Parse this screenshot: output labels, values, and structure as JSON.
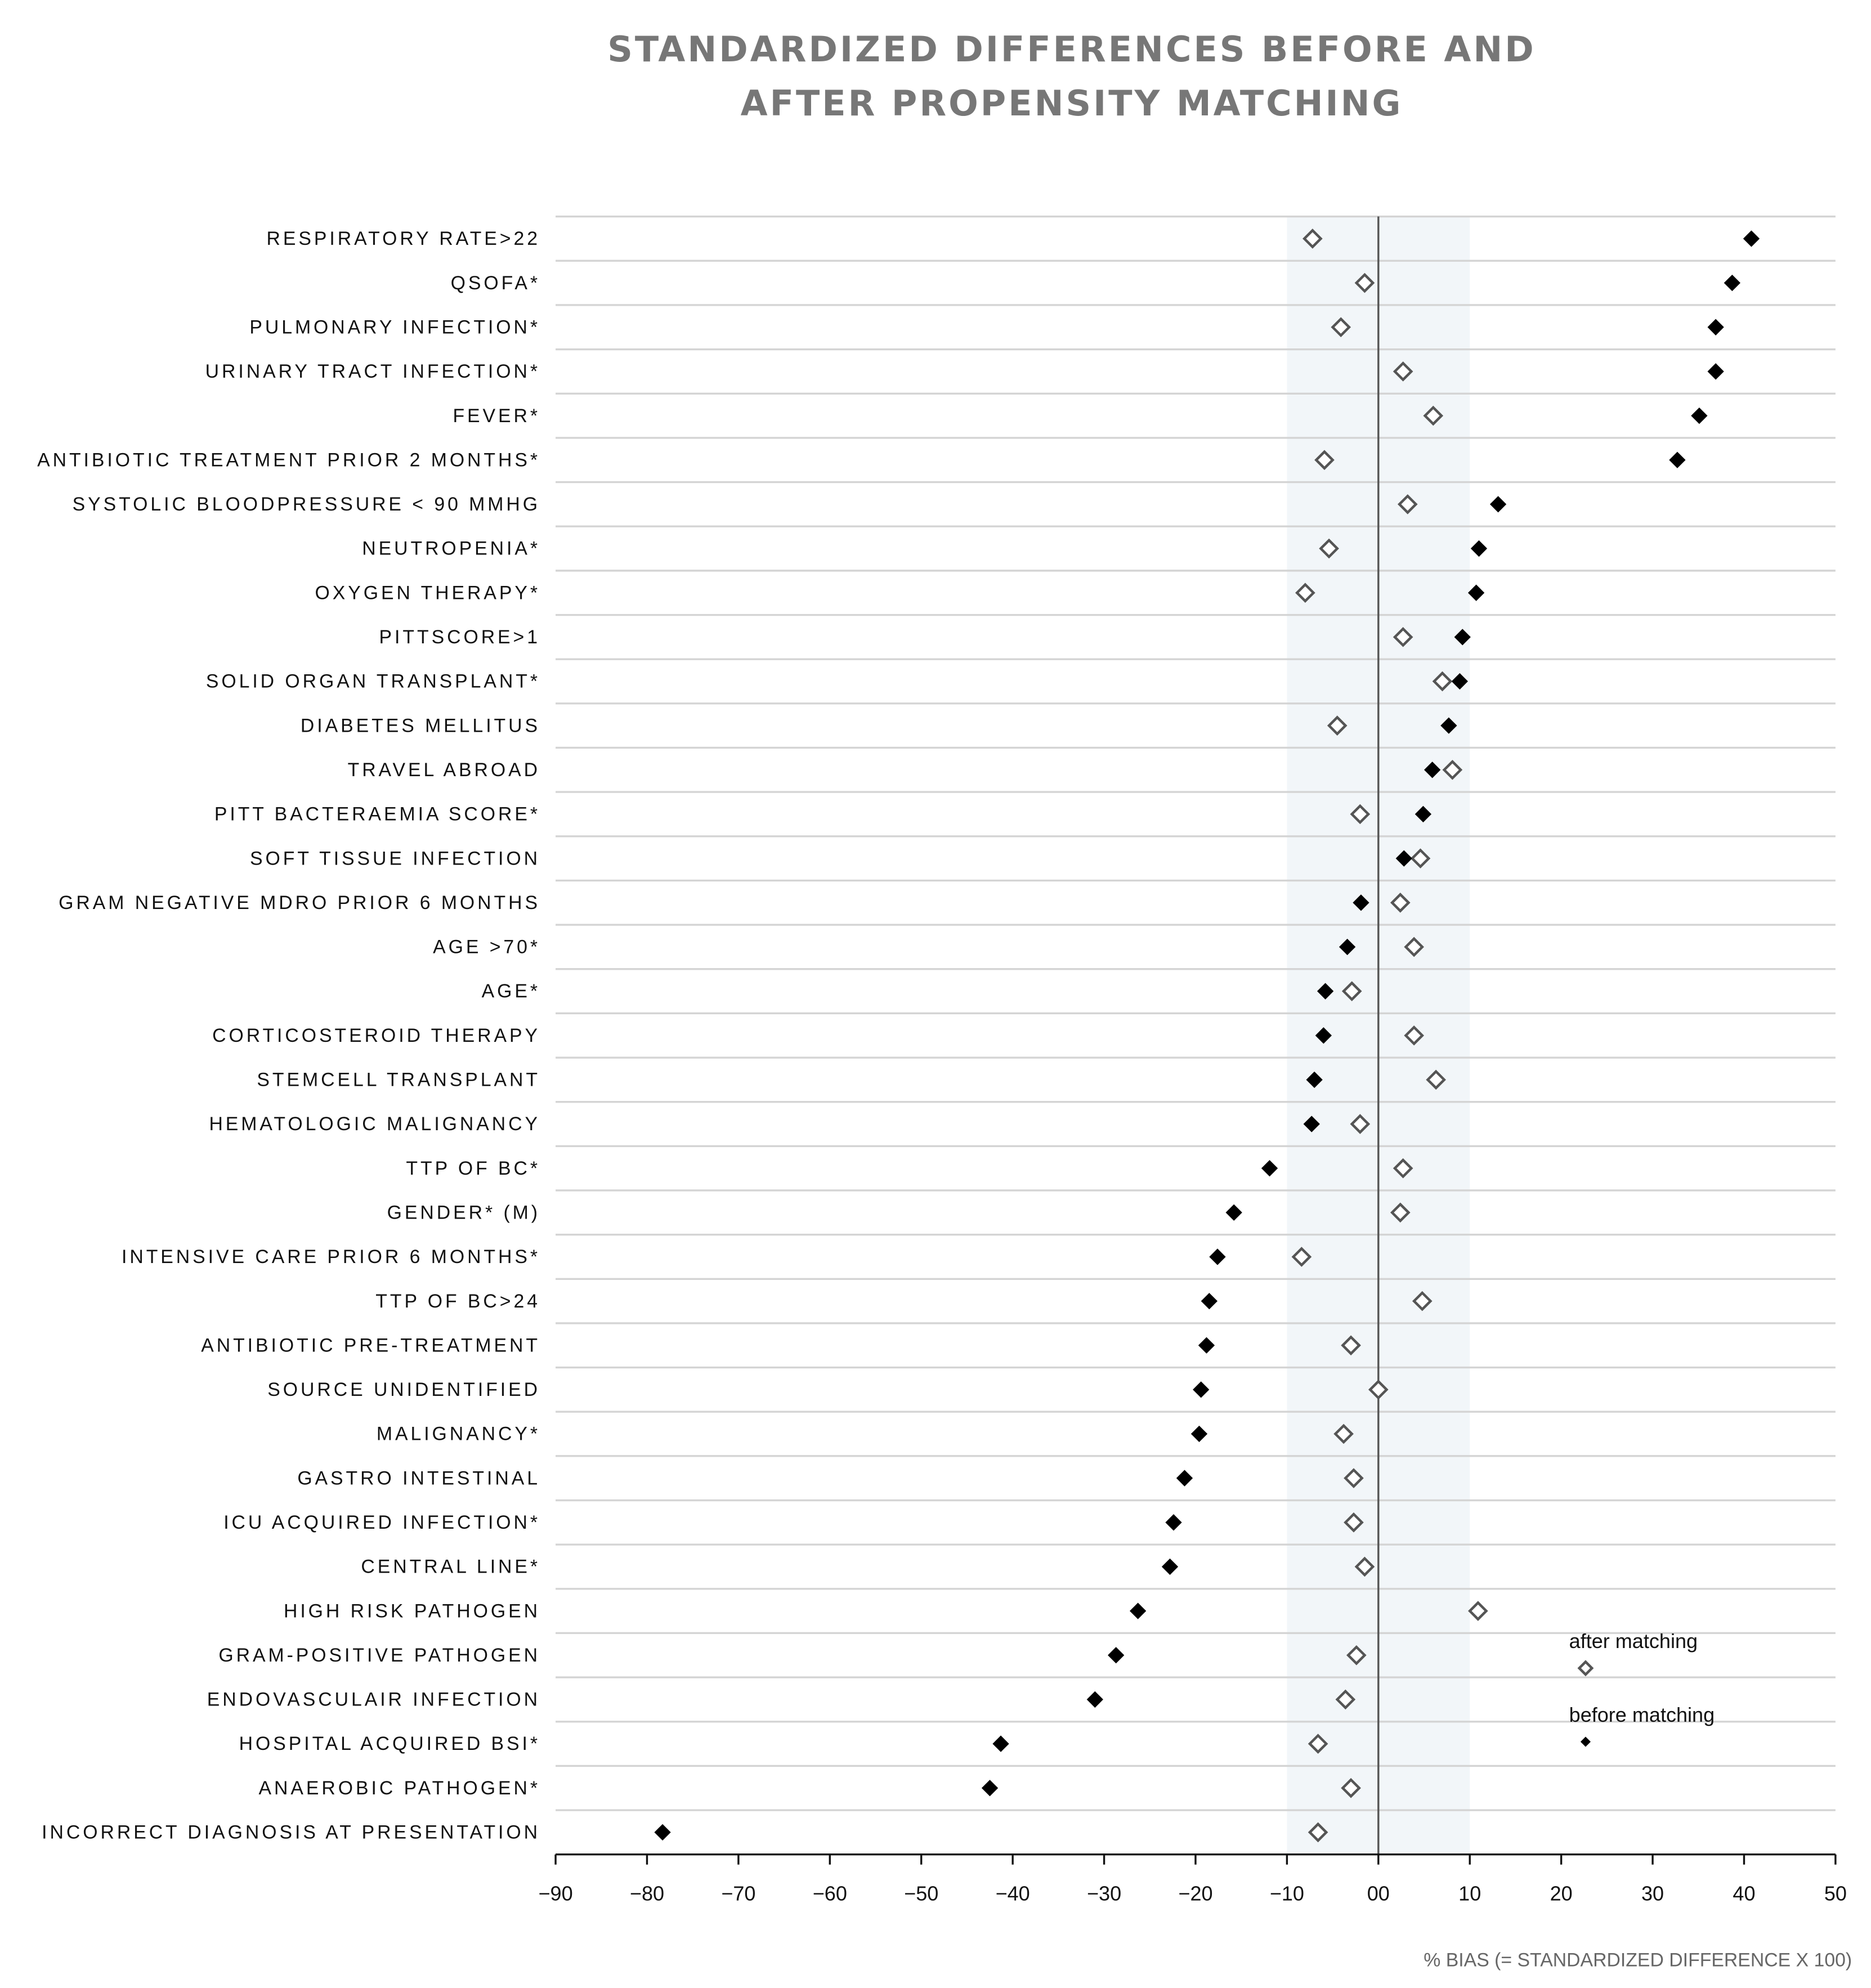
{
  "chart_data": {
    "type": "dot",
    "title": "STANDARDIZED DIFFERENCES BEFORE AND AFTER PROPENSITY MATCHING",
    "x_label": "% BIAS (= STANDARDIZED DIFFERENCE X 100)",
    "categories": [
      "RESPIRATORY RATE>22",
      "QSOFA*",
      "PULMONARY INFECTION*",
      "URINARY TRACT INFECTION*",
      "FEVER*",
      "ANTIBIOTIC TREATMENT PRIOR 2 MONTHS*",
      "SYSTOLIC BLOODPRESSURE < 90 MMHG",
      "NEUTROPENIA*",
      "OXYGEN THERAPY*",
      "PITTSCORE>1",
      "SOLID ORGAN TRANSPLANT*",
      "DIABETES MELLITUS",
      "TRAVEL ABROAD",
      "PITT BACTERAEMIA SCORE*",
      "SOFT TISSUE INFECTION",
      "GRAM NEGATIVE MDRO PRIOR 6 MONTHS",
      "AGE >70*",
      "AGE*",
      "CORTICOSTEROID THERAPY",
      "STEMCELL TRANSPLANT",
      "HEMATOLOGIC MALIGNANCY",
      "TTP OF BC*",
      "GENDER* (M)",
      "INTENSIVE CARE PRIOR 6 MONTHS*",
      "TTP OF BC>24",
      "ANTIBIOTIC PRE-TREATMENT",
      "SOURCE UNIDENTIFIED",
      "MALIGNANCY*",
      "GASTRO INTESTINAL",
      "ICU ACQUIRED INFECTION*",
      "CENTRAL LINE*",
      "HIGH RISK PATHOGEN",
      "GRAM-POSITIVE PATHOGEN",
      "ENDOVASCULAIR INFECTION",
      "HOSPITAL ACQUIRED BSI*",
      "ANAEROBIC PATHOGEN*",
      "INCORRECT DIAGNOSIS AT PRESENTATION"
    ],
    "series": [
      {
        "name": "after matching",
        "color": "#555555",
        "marker": "open",
        "values": [
          -7.2,
          -1.5,
          -4.1,
          2.7,
          6.0,
          -5.9,
          3.2,
          -5.4,
          -8.0,
          2.7,
          7.0,
          -4.5,
          8.1,
          -2.0,
          4.6,
          2.4,
          3.9,
          -2.9,
          3.9,
          6.3,
          -2.0,
          2.7,
          2.4,
          -8.4,
          4.8,
          -3.0,
          0,
          -3.8,
          -2.7,
          -2.7,
          -1.5,
          10.9,
          -2.4,
          -3.6,
          -6.6,
          -3.0,
          -6.6
        ]
      },
      {
        "name": "before matching",
        "color": "#000000",
        "marker": "filled",
        "values": [
          40.8,
          38.7,
          36.9,
          36.9,
          35.1,
          32.7,
          13.1,
          11.0,
          10.7,
          9.2,
          8.9,
          7.7,
          5.9,
          4.9,
          2.8,
          -1.9,
          -3.4,
          -5.8,
          -6.0,
          -7.0,
          -7.3,
          -11.9,
          -15.8,
          -17.6,
          -18.5,
          -18.8,
          -19.4,
          -19.6,
          -21.2,
          -22.4,
          -22.8,
          -26.3,
          -28.7,
          -31.0,
          -41.3,
          -42.5,
          -78.3
        ]
      }
    ],
    "xlim": [
      -90,
      50
    ],
    "xticks": [
      {
        "value": -90,
        "label": "−90"
      },
      {
        "value": -80,
        "label": "−80"
      },
      {
        "value": -70,
        "label": "−70"
      },
      {
        "value": -60,
        "label": "−60"
      },
      {
        "value": -50,
        "label": "−50"
      },
      {
        "value": -40,
        "label": "−40"
      },
      {
        "value": -30,
        "label": "−30"
      },
      {
        "value": -20,
        "label": "−20"
      },
      {
        "value": -10,
        "label": "−10"
      },
      {
        "value": 0,
        "label": "00"
      },
      10,
      20,
      30,
      40,
      50
    ],
    "shaded_range": [
      -10,
      10
    ],
    "shade_color": "#f2f6f9",
    "grid": true,
    "legend": "lower right"
  }
}
